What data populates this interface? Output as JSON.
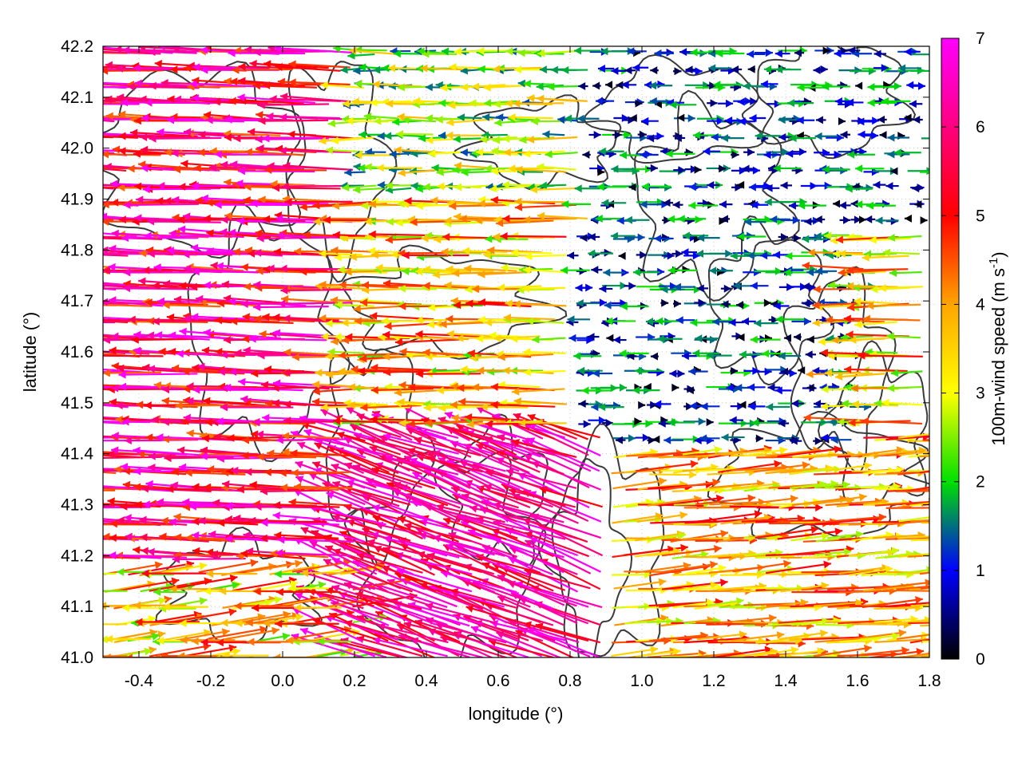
{
  "chart_data": {
    "type": "vector-field",
    "xlabel": "longitude (°)",
    "ylabel": "latitude (°)",
    "xlim": [
      -0.5,
      1.8
    ],
    "ylim": [
      41.0,
      42.2
    ],
    "x_ticks": [
      "-0.4",
      "-0.2",
      "0.0",
      "0.2",
      "0.4",
      "0.6",
      "0.8",
      "1.0",
      "1.2",
      "1.4",
      "1.6",
      "1.8"
    ],
    "y_ticks": [
      "41.0",
      "41.1",
      "41.2",
      "41.3",
      "41.4",
      "41.5",
      "41.6",
      "41.7",
      "41.8",
      "41.9",
      "42.0",
      "42.1",
      "42.2"
    ],
    "grid": true,
    "colorbar": {
      "label_main": "100m-wind speed (m s",
      "label_sup": "-1",
      "label_end": ")",
      "range": [
        0,
        7
      ],
      "ticks": [
        "0",
        "1",
        "2",
        "3",
        "4",
        "5",
        "6",
        "7"
      ],
      "colors": [
        "#000000",
        "#0000ff",
        "#00e000",
        "#ffff00",
        "#ffa500",
        "#ff0000",
        "#ff00ff"
      ]
    },
    "contour_color": "#3a3a3a",
    "note_regions": [
      {
        "region": "west, lat 41.2-42.2",
        "direction_deg_from_east": 180,
        "speed_range": [
          5,
          7
        ]
      },
      {
        "region": "center, lat 41.5-42.2",
        "direction_deg_from_east": 180,
        "speed_range": [
          2,
          5
        ]
      },
      {
        "region": "northeast, lon 0.8-1.6, lat 41.4-42.2",
        "direction_deg_from_east": 0,
        "speed_range": [
          0,
          2
        ]
      },
      {
        "region": "southeast, lat 41.0-41.4",
        "direction_deg_from_east": 0,
        "speed_range": [
          3,
          6
        ]
      },
      {
        "region": "south-center, lon 0.2-0.9, lat 41.0-41.5",
        "direction_deg_from_east": 160,
        "speed_range": [
          6,
          7
        ]
      }
    ]
  }
}
